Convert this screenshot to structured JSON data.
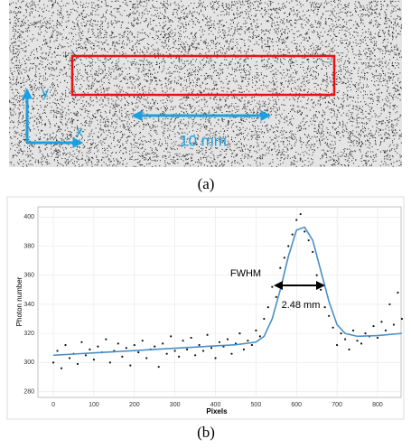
{
  "image": {
    "y_axis": "y",
    "x_axis": "x",
    "scale": "10 mm",
    "caption": "(a)"
  },
  "chart_data": {
    "type": "scatter",
    "caption": "(b)",
    "xlabel": "Pixels",
    "ylabel": "Photon number",
    "annotation": "FWHM",
    "annotation_value": "2.48 mm",
    "grid": true,
    "xlim": [
      -38,
      858
    ],
    "ylim": [
      276,
      407
    ],
    "xticks": [
      0,
      100,
      200,
      300,
      400,
      500,
      600,
      700,
      800
    ],
    "yticks": [
      280,
      300,
      320,
      340,
      360,
      380,
      400
    ],
    "series": [
      {
        "type": "scatter",
        "color": "#111111",
        "x": [
          0,
          10,
          20,
          30,
          40,
          50,
          60,
          70,
          80,
          90,
          100,
          110,
          120,
          130,
          140,
          150,
          160,
          170,
          180,
          190,
          200,
          210,
          220,
          230,
          240,
          250,
          260,
          270,
          280,
          290,
          300,
          310,
          320,
          330,
          340,
          350,
          360,
          370,
          380,
          390,
          400,
          410,
          420,
          430,
          440,
          450,
          460,
          470,
          480,
          490,
          500,
          510,
          520,
          530,
          540,
          550,
          560,
          570,
          580,
          590,
          600,
          610,
          620,
          630,
          640,
          650,
          660,
          670,
          680,
          690,
          700,
          710,
          720,
          730,
          740,
          750,
          760,
          770,
          780,
          790,
          800,
          810,
          820,
          830,
          840,
          850,
          860
        ],
        "values": [
          300,
          308,
          296,
          312,
          303,
          306,
          299,
          314,
          305,
          309,
          302,
          311,
          307,
          316,
          300,
          308,
          313,
          304,
          310,
          298,
          312,
          307,
          315,
          303,
          309,
          311,
          297,
          313,
          306,
          318,
          308,
          304,
          315,
          309,
          317,
          305,
          312,
          308,
          319,
          310,
          303,
          314,
          311,
          316,
          306,
          313,
          320,
          309,
          315,
          312,
          322,
          318,
          330,
          338,
          352,
          345,
          365,
          372,
          380,
          388,
          398,
          402,
          390,
          384,
          376,
          360,
          350,
          338,
          332,
          324,
          312,
          320,
          316,
          309,
          322,
          315,
          313,
          320,
          318,
          325,
          317,
          328,
          322,
          340,
          326,
          348,
          330
        ]
      },
      {
        "type": "line",
        "color": "#4a8fc7",
        "x": [
          0,
          50,
          100,
          150,
          200,
          250,
          300,
          350,
          400,
          450,
          500,
          520,
          540,
          560,
          580,
          600,
          620,
          640,
          660,
          680,
          700,
          720,
          750,
          800,
          860
        ],
        "values": [
          305,
          305.8,
          306.6,
          307.4,
          308.2,
          309,
          309.8,
          310.6,
          311.4,
          312.2,
          314,
          318,
          330,
          350,
          373,
          391,
          393,
          384,
          363,
          342,
          326,
          320,
          318,
          318.5,
          320
        ]
      }
    ]
  }
}
